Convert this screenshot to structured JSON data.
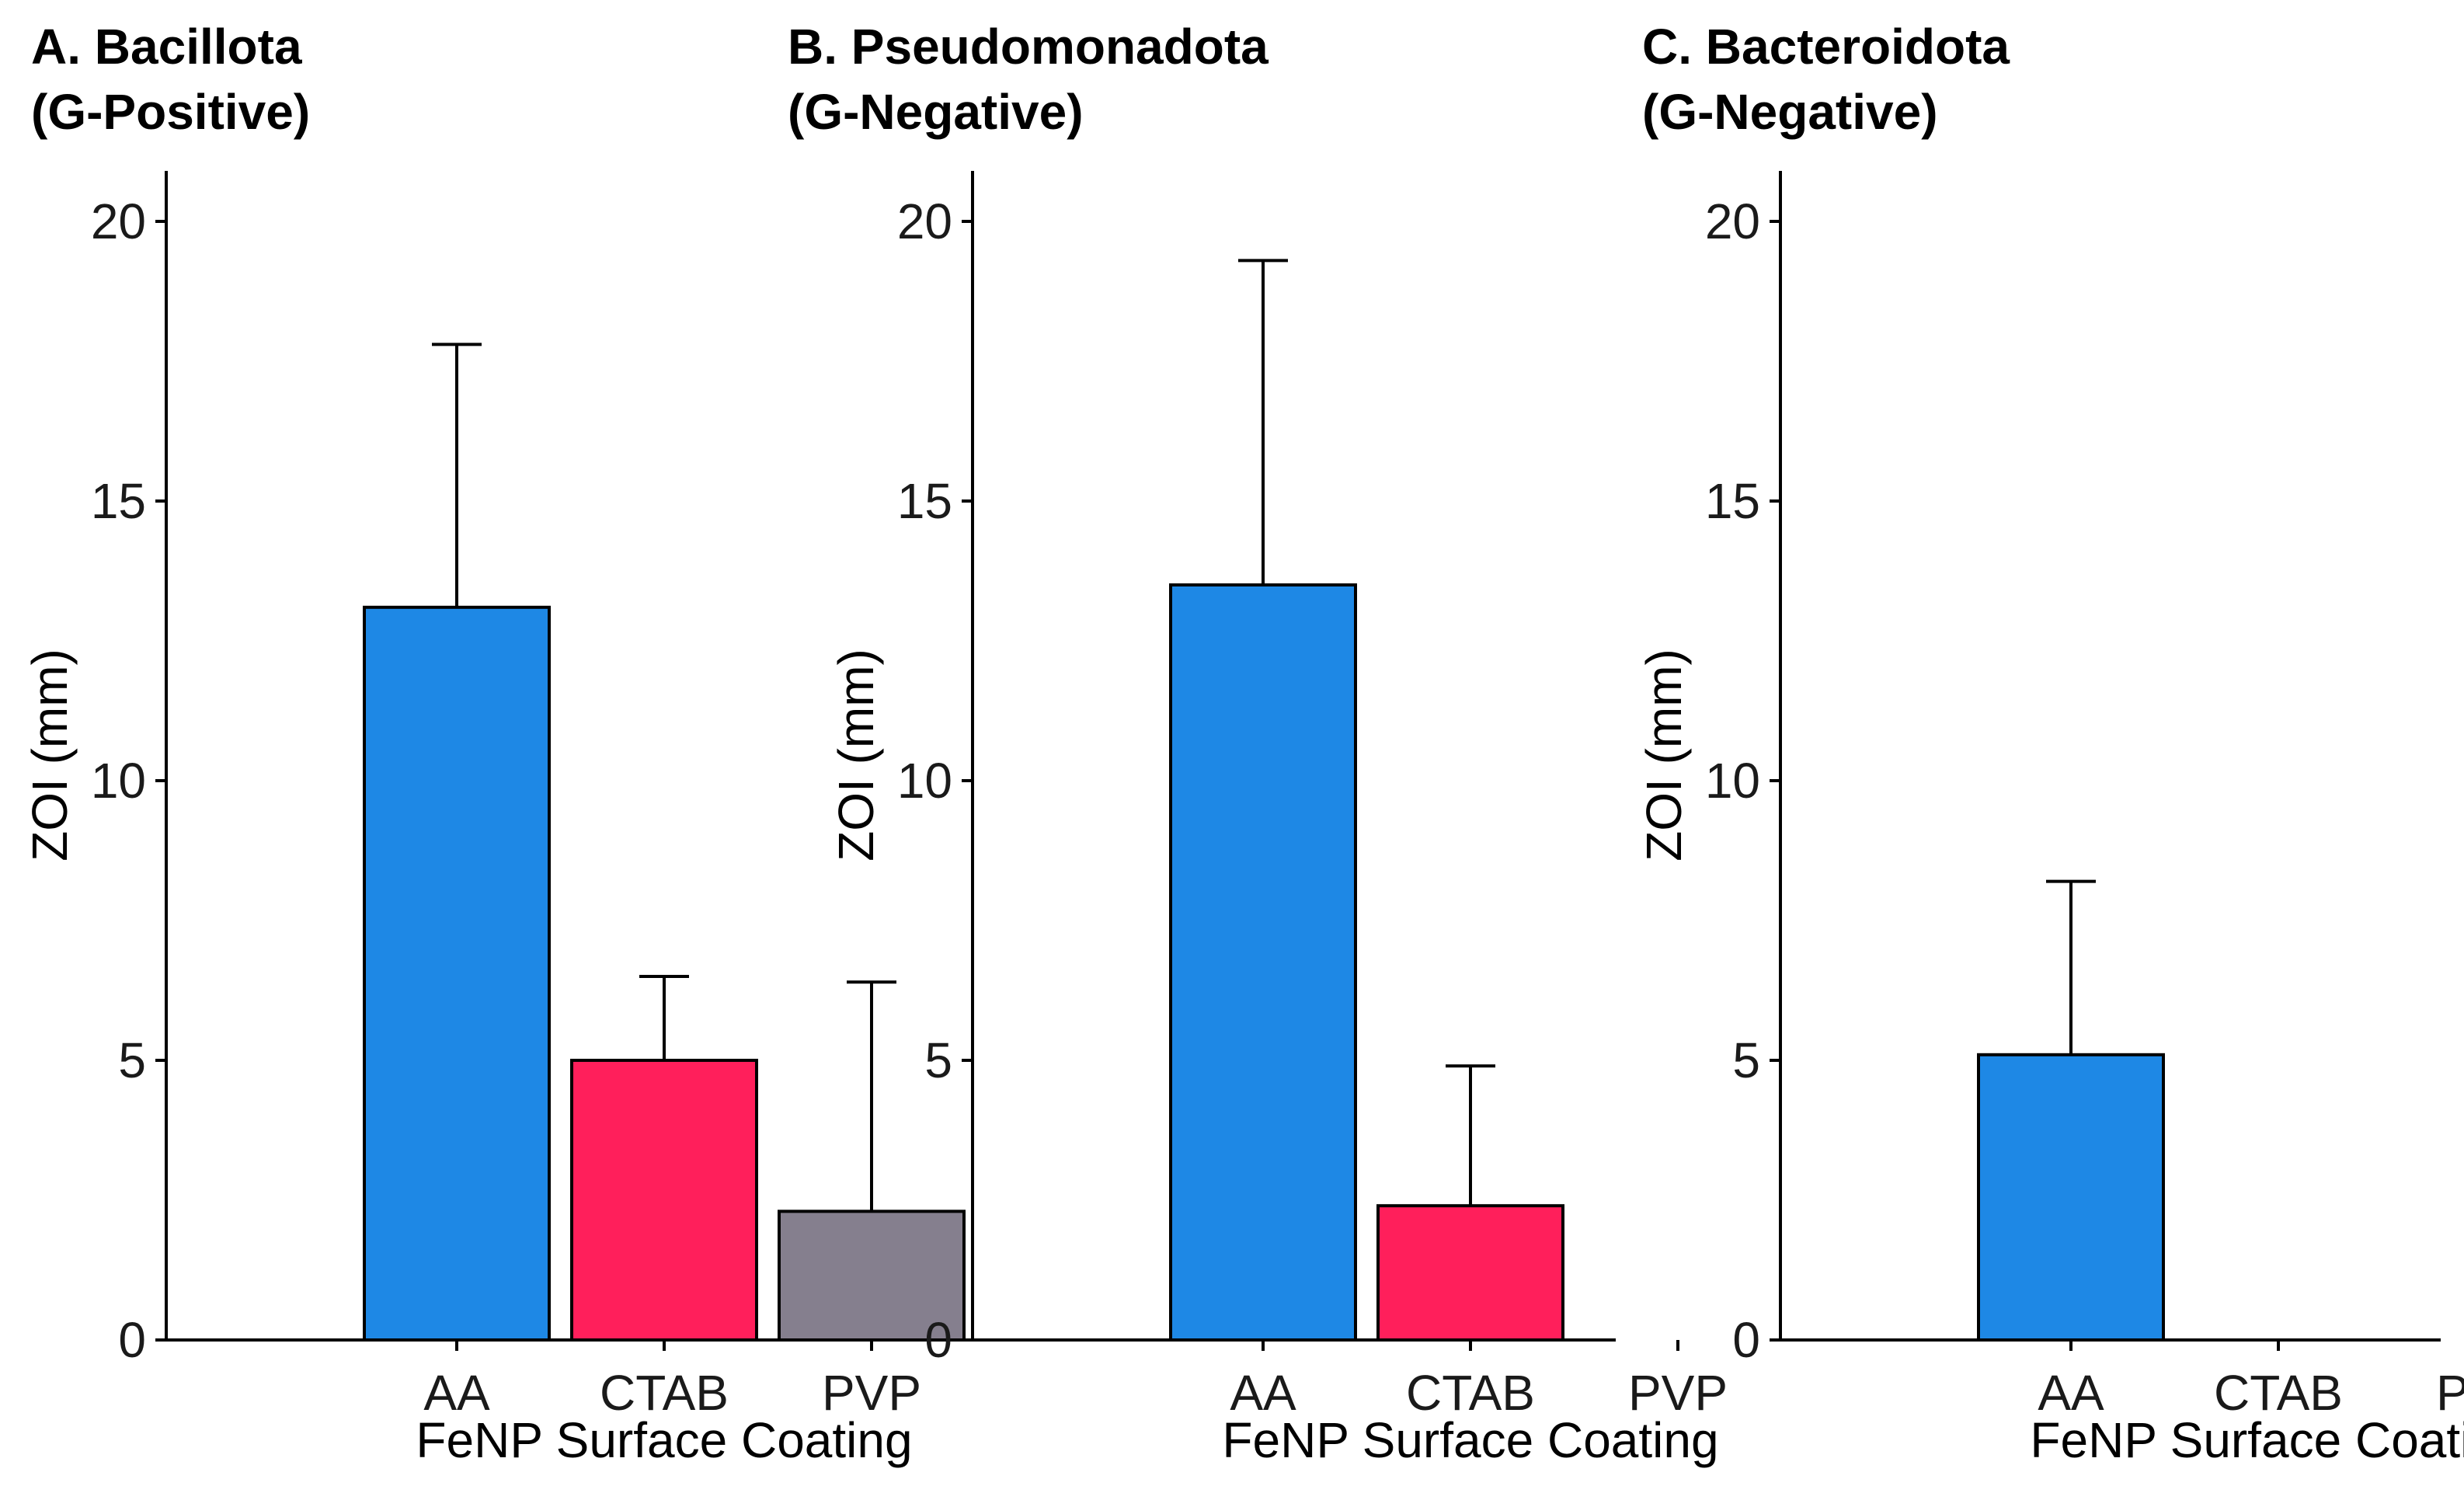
{
  "chart_data": [
    {
      "type": "bar",
      "panel": "A",
      "title_lines": [
        "A. Bacillota",
        "(G-Positive)"
      ],
      "categories": [
        "AA",
        "CTAB",
        "PVP"
      ],
      "values": [
        13.1,
        5.0,
        2.3
      ],
      "error_upper": [
        17.8,
        6.5,
        6.4
      ],
      "colors": [
        "#1E88E5",
        "#FF1F5B",
        "#857F8E"
      ],
      "xlabel": "FeNP Surface Coating",
      "ylabel": "ZOI (mm)",
      "ylim": [
        0,
        21
      ],
      "yticks": [
        0,
        5,
        10,
        15,
        20
      ]
    },
    {
      "type": "bar",
      "panel": "B",
      "title_lines": [
        "B. Pseudomonadota",
        "(G-Negative)"
      ],
      "categories": [
        "AA",
        "CTAB",
        "PVP"
      ],
      "values": [
        13.5,
        2.4,
        null
      ],
      "error_upper": [
        19.3,
        4.9,
        null
      ],
      "colors": [
        "#1E88E5",
        "#FF1F5B",
        "#857F8E"
      ],
      "xlabel": "FeNP Surface Coating",
      "ylabel": "ZOI (mm)",
      "ylim": [
        0,
        21
      ],
      "yticks": [
        0,
        5,
        10,
        15,
        20
      ]
    },
    {
      "type": "bar",
      "panel": "C",
      "title_lines": [
        "C. Bacteroidota",
        "(G-Negative)"
      ],
      "categories": [
        "AA",
        "CTAB",
        "PVP"
      ],
      "values": [
        5.1,
        null,
        null
      ],
      "error_upper": [
        8.2,
        null,
        null
      ],
      "colors": [
        "#1E88E5",
        "#FF1F5B",
        "#857F8E"
      ],
      "xlabel": "FeNP Surface Coating",
      "ylabel": "ZOI (mm)",
      "ylim": [
        0,
        21
      ],
      "yticks": [
        0,
        5,
        10,
        15,
        20
      ]
    }
  ]
}
